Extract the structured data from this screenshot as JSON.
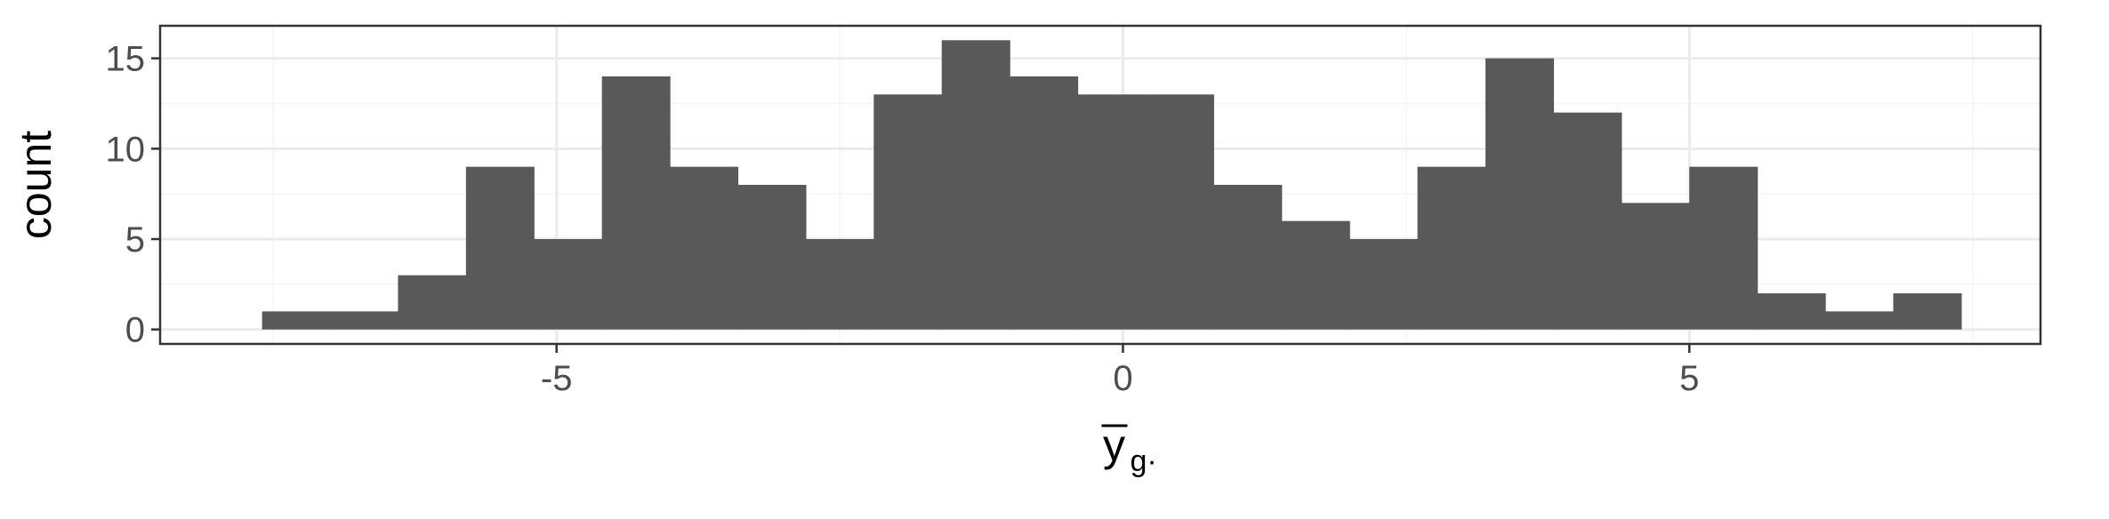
{
  "chart_data": {
    "type": "bar",
    "subtype": "histogram",
    "bin_width": 0.6,
    "x_start": -7.6,
    "counts": [
      1,
      1,
      3,
      9,
      5,
      14,
      9,
      8,
      5,
      13,
      16,
      14,
      13,
      13,
      8,
      6,
      5,
      9,
      15,
      12,
      7,
      9,
      2,
      1,
      2
    ],
    "xlim": [
      -8.5,
      8.1
    ],
    "ylim": [
      -0.8,
      16.8
    ],
    "x_ticks": [
      -5,
      0,
      5
    ],
    "x_tick_labels": [
      "-5",
      "0",
      "5"
    ],
    "y_ticks": [
      0,
      5,
      10,
      15
    ],
    "y_tick_labels": [
      "0",
      "5",
      "10",
      "15"
    ],
    "xlabel": "y",
    "xlabel_subscript": "g·",
    "ylabel": "count",
    "grid": true,
    "colors": {
      "bar": "#595959",
      "panel_border": "#333333",
      "grid_major": "#ebebeb",
      "grid_minor": "#f5f5f5"
    }
  }
}
